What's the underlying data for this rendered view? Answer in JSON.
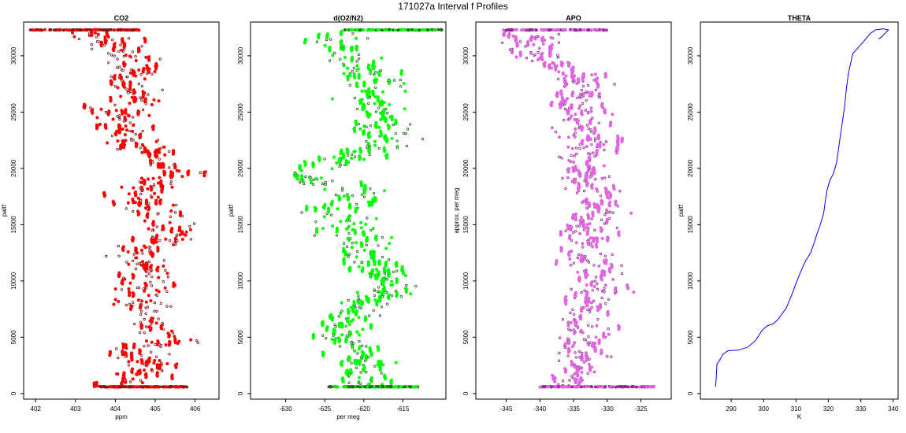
{
  "figure": {
    "title": "171027a   Interval f Profiles"
  },
  "panels": [
    {
      "id": "co2",
      "title": "CO2",
      "xlabel": "ppm",
      "ylabel": "paltf",
      "xlim": [
        401.7,
        406.6
      ],
      "ylim": [
        -500,
        33000
      ],
      "xticks": [
        402,
        403,
        404,
        405,
        406
      ],
      "xtick_labels": [
        "402",
        "403",
        "404",
        "405",
        "406"
      ],
      "yticks": [
        0,
        5000,
        10000,
        15000,
        20000,
        25000,
        30000
      ],
      "ytick_labels": [
        "0",
        "5000",
        "10000",
        "15000",
        "20000",
        "25000",
        "30000"
      ],
      "fill_color": "#ff0000",
      "outline_color": "#7a1a1a",
      "trace": [
        [
          403.2,
          32300
        ],
        [
          404.0,
          31000
        ],
        [
          404.2,
          30200
        ],
        [
          404.4,
          28800
        ],
        [
          404.1,
          27500
        ],
        [
          404.5,
          26800
        ],
        [
          404.3,
          25800
        ],
        [
          404.0,
          24500
        ],
        [
          404.2,
          23500
        ],
        [
          404.4,
          22300
        ],
        [
          405.0,
          21000
        ],
        [
          405.4,
          20000
        ],
        [
          405.2,
          19000
        ],
        [
          404.6,
          18000
        ],
        [
          404.7,
          17000
        ],
        [
          405.0,
          16000
        ],
        [
          405.3,
          15000
        ],
        [
          405.6,
          14000
        ],
        [
          404.7,
          13000
        ],
        [
          404.4,
          12000
        ],
        [
          404.8,
          11000
        ],
        [
          404.5,
          10000
        ],
        [
          404.9,
          9000
        ],
        [
          404.6,
          8000
        ],
        [
          405.0,
          7000
        ],
        [
          404.7,
          6000
        ],
        [
          405.6,
          4800
        ],
        [
          404.6,
          4000
        ],
        [
          404.8,
          3000
        ],
        [
          404.9,
          2000
        ],
        [
          404.5,
          1000
        ],
        [
          404.0,
          600
        ]
      ],
      "spread": 0.45,
      "bottom_band": [
        403.6,
        405.8,
        600
      ],
      "top_band": [
        401.8,
        404.6,
        32300
      ],
      "seed": 11
    },
    {
      "id": "do2n2",
      "title": "d(O2/N2)",
      "xlabel": "per meg",
      "ylabel": "paltf",
      "xlim": [
        -634.5,
        -609.5
      ],
      "ylim": [
        -500,
        33000
      ],
      "xticks": [
        -630,
        -625,
        -620,
        -615
      ],
      "xtick_labels": [
        "-630",
        "-625",
        "-620",
        "-615"
      ],
      "yticks": [
        0,
        5000,
        10000,
        15000,
        20000,
        25000,
        30000
      ],
      "ytick_labels": [
        "0",
        "5000",
        "10000",
        "15000",
        "20000",
        "25000",
        "30000"
      ],
      "fill_color": "#00ff00",
      "outline_color": "#1f6b1f",
      "trace": [
        [
          -618,
          32300
        ],
        [
          -624,
          31500
        ],
        [
          -622,
          30000
        ],
        [
          -620,
          28500
        ],
        [
          -618,
          27500
        ],
        [
          -620,
          26000
        ],
        [
          -618,
          25000
        ],
        [
          -619,
          24000
        ],
        [
          -617,
          23000
        ],
        [
          -616,
          22500
        ],
        [
          -621,
          21000
        ],
        [
          -626,
          20000
        ],
        [
          -628,
          19000
        ],
        [
          -621,
          18000
        ],
        [
          -620,
          17000
        ],
        [
          -624,
          16500
        ],
        [
          -622,
          15000
        ],
        [
          -622,
          14000
        ],
        [
          -619,
          13000
        ],
        [
          -621,
          12000
        ],
        [
          -618,
          11000
        ],
        [
          -617,
          10000
        ],
        [
          -616,
          9500
        ],
        [
          -619,
          8000
        ],
        [
          -621,
          7000
        ],
        [
          -622,
          6000
        ],
        [
          -623,
          5000
        ],
        [
          -621,
          4000
        ],
        [
          -620,
          3000
        ],
        [
          -620,
          2000
        ],
        [
          -621,
          1000
        ],
        [
          -620,
          600
        ]
      ],
      "spread": 2.3,
      "bottom_band": [
        -624.5,
        -613,
        600
      ],
      "top_band": [
        -622.5,
        -610,
        32300
      ],
      "seed": 23
    },
    {
      "id": "apo",
      "title": "APO",
      "xlabel": "",
      "ylabel": "approx. per meg",
      "xlim": [
        -349.5,
        -320.5
      ],
      "ylim": [
        -500,
        33000
      ],
      "xticks": [
        -345,
        -340,
        -335,
        -330,
        -325
      ],
      "xtick_labels": [
        "-345",
        "-340",
        "-335",
        "-330",
        "-325"
      ],
      "yticks": [
        0,
        5000,
        10000,
        15000,
        20000,
        25000,
        30000
      ],
      "ytick_labels": [
        "0",
        "5000",
        "10000",
        "15000",
        "20000",
        "25000",
        "30000"
      ],
      "fill_color": "#e066e0",
      "outline_color": "#8a2a8a",
      "trace": [
        [
          -340,
          32300
        ],
        [
          -342,
          31000
        ],
        [
          -340,
          30000
        ],
        [
          -337,
          29000
        ],
        [
          -334,
          28000
        ],
        [
          -333,
          27000
        ],
        [
          -335,
          26000
        ],
        [
          -334,
          25000
        ],
        [
          -335,
          24000
        ],
        [
          -333,
          23000
        ],
        [
          -332,
          22000
        ],
        [
          -334,
          21000
        ],
        [
          -333,
          20000
        ],
        [
          -333,
          19000
        ],
        [
          -332,
          18000
        ],
        [
          -332,
          17000
        ],
        [
          -331,
          16000
        ],
        [
          -332,
          15000
        ],
        [
          -333,
          14000
        ],
        [
          -332,
          13000
        ],
        [
          -333,
          12000
        ],
        [
          -332,
          11000
        ],
        [
          -332,
          10000
        ],
        [
          -331,
          9000
        ],
        [
          -333,
          8000
        ],
        [
          -333,
          7000
        ],
        [
          -334,
          6000
        ],
        [
          -333,
          5000
        ],
        [
          -334,
          4000
        ],
        [
          -333,
          3000
        ],
        [
          -334,
          2000
        ],
        [
          -334,
          1000
        ],
        [
          -334,
          600
        ]
      ],
      "spread": 2.6,
      "bottom_band": [
        -340,
        -323,
        600
      ],
      "top_band": [
        -345.5,
        -330,
        32300
      ],
      "seed": 37
    },
    {
      "id": "theta",
      "title": "THETA",
      "xlabel": "K",
      "ylabel": "paltf",
      "xlim": [
        280.5,
        341.5
      ],
      "ylim": [
        -500,
        33000
      ],
      "xticks": [
        290,
        300,
        310,
        320,
        330,
        340
      ],
      "xtick_labels": [
        "290",
        "300",
        "310",
        "320",
        "330",
        "340"
      ],
      "yticks": [
        0,
        5000,
        10000,
        15000,
        20000,
        25000,
        30000
      ],
      "ytick_labels": [
        "0",
        "5000",
        "10000",
        "15000",
        "20000",
        "25000",
        "30000"
      ],
      "line_color": "#0000ff",
      "profile": [
        [
          285.2,
          600
        ],
        [
          285.4,
          1500
        ],
        [
          285.6,
          2600
        ],
        [
          286.5,
          3000
        ],
        [
          287.5,
          3500
        ],
        [
          289,
          3800
        ],
        [
          292,
          3850
        ],
        [
          295,
          4100
        ],
        [
          297.5,
          4700
        ],
        [
          299.5,
          5600
        ],
        [
          301,
          6000
        ],
        [
          303,
          6200
        ],
        [
          304.5,
          6600
        ],
        [
          306,
          7200
        ],
        [
          307,
          7600
        ],
        [
          308,
          8300
        ],
        [
          309,
          9000
        ],
        [
          310,
          9800
        ],
        [
          311,
          10500
        ],
        [
          312,
          11200
        ],
        [
          313,
          11800
        ],
        [
          314.5,
          12500
        ],
        [
          315.5,
          13300
        ],
        [
          316.5,
          14200
        ],
        [
          317.5,
          15000
        ],
        [
          318.5,
          16000
        ],
        [
          319,
          17000
        ],
        [
          319.5,
          18000
        ],
        [
          320.5,
          19000
        ],
        [
          321.5,
          19500
        ],
        [
          322.5,
          20500
        ],
        [
          323,
          21500
        ],
        [
          323.5,
          22500
        ],
        [
          324,
          23500
        ],
        [
          324.5,
          24500
        ],
        [
          325,
          25500
        ],
        [
          325.5,
          27000
        ],
        [
          326.2,
          28500
        ],
        [
          327,
          29500
        ],
        [
          327.5,
          30200
        ],
        [
          328.5,
          30500
        ],
        [
          330,
          31000
        ],
        [
          331.5,
          31500
        ],
        [
          333,
          32000
        ],
        [
          334.5,
          32300
        ],
        [
          337,
          32400
        ],
        [
          338.5,
          32300
        ],
        [
          337.5,
          32000
        ],
        [
          336.5,
          31700
        ],
        [
          335.5,
          31500
        ]
      ]
    }
  ]
}
